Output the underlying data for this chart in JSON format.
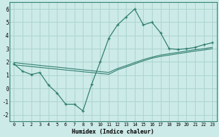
{
  "xlabel": "Humidex (Indice chaleur)",
  "background_color": "#cceae7",
  "grid_color": "#aad4d0",
  "line_color": "#2e7d6e",
  "x_values": [
    0,
    1,
    2,
    3,
    4,
    5,
    6,
    7,
    8,
    9,
    10,
    11,
    12,
    13,
    14,
    15,
    16,
    17,
    18,
    19,
    20,
    21,
    22,
    23
  ],
  "y_curve": [
    1.85,
    1.3,
    1.05,
    1.2,
    0.25,
    -0.35,
    -1.2,
    -1.2,
    -1.7,
    0.3,
    2.0,
    3.8,
    4.8,
    5.4,
    6.0,
    4.8,
    5.0,
    4.2,
    3.0,
    2.95,
    3.0,
    3.1,
    3.3,
    3.45
  ],
  "y_linear_lo": [
    1.78,
    1.72,
    1.65,
    1.59,
    1.52,
    1.46,
    1.39,
    1.33,
    1.26,
    1.2,
    1.13,
    1.07,
    1.4,
    1.62,
    1.85,
    2.08,
    2.28,
    2.42,
    2.52,
    2.62,
    2.72,
    2.82,
    2.9,
    3.0
  ],
  "y_linear_hi": [
    1.95,
    1.88,
    1.81,
    1.74,
    1.67,
    1.61,
    1.54,
    1.47,
    1.4,
    1.34,
    1.27,
    1.21,
    1.5,
    1.72,
    1.95,
    2.18,
    2.36,
    2.52,
    2.62,
    2.72,
    2.82,
    2.92,
    3.0,
    3.1
  ],
  "ylim": [
    -2.5,
    6.5
  ],
  "xlim": [
    -0.5,
    23.5
  ],
  "yticks": [
    -2,
    -1,
    0,
    1,
    2,
    3,
    4,
    5,
    6
  ],
  "xticks": [
    0,
    1,
    2,
    3,
    4,
    5,
    6,
    7,
    8,
    9,
    10,
    11,
    12,
    13,
    14,
    15,
    16,
    17,
    18,
    19,
    20,
    21,
    22,
    23
  ]
}
